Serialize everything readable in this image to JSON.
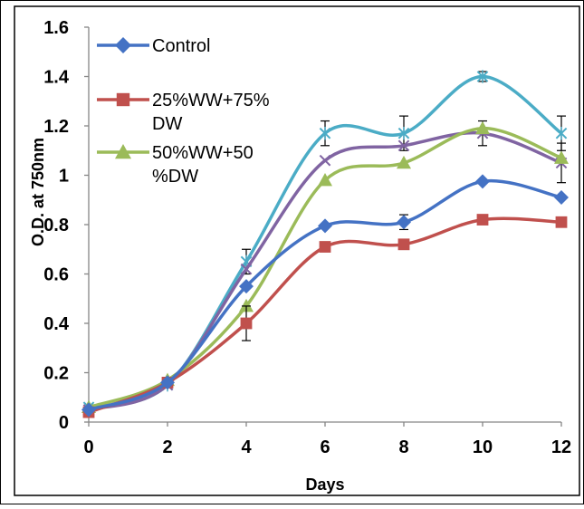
{
  "chart_data": {
    "type": "line",
    "title": "",
    "xlabel": "Days",
    "ylabel": "O.D. at 750nm",
    "x": [
      0,
      2,
      4,
      6,
      8,
      10,
      12
    ],
    "xlim": [
      0,
      12
    ],
    "ylim": [
      0,
      1.6
    ],
    "x_ticks": [
      "0",
      "2",
      "4",
      "6",
      "8",
      "10",
      "12"
    ],
    "y_ticks": [
      "0",
      "0.2",
      "0.4",
      "0.6",
      "0.8",
      "1",
      "1.2",
      "1.4",
      "1.6"
    ],
    "grid": false,
    "legend_position": "top-left",
    "series": [
      {
        "name": "Control",
        "color": "#4472C4",
        "marker": "diamond",
        "values": [
          0.05,
          0.16,
          0.55,
          0.795,
          0.81,
          0.975,
          0.91
        ],
        "error": [
          0.0,
          0.0,
          0.0,
          0.0,
          0.03,
          0.0,
          0.0
        ]
      },
      {
        "name": "25%WW+75%DW",
        "color": "#C0504D",
        "marker": "square",
        "values": [
          0.04,
          0.16,
          0.4,
          0.71,
          0.72,
          0.82,
          0.81
        ],
        "error": [
          0.0,
          0.02,
          0.07,
          0.0,
          0.0,
          0.0,
          0.0
        ]
      },
      {
        "name": "50%WW+50%DW",
        "color": "#9BBB59",
        "marker": "triangle",
        "values": [
          0.06,
          0.17,
          0.47,
          0.98,
          1.05,
          1.19,
          1.07
        ],
        "error": [
          0.0,
          0.0,
          0.0,
          0.0,
          0.0,
          0.0,
          0.0
        ]
      },
      {
        "name": "",
        "color": "#8064A2",
        "marker": "x",
        "values": [
          0.05,
          0.15,
          0.62,
          1.06,
          1.12,
          1.17,
          1.05
        ],
        "error": [
          0.0,
          0.0,
          0.0,
          0.0,
          0.0,
          0.05,
          0.08
        ]
      },
      {
        "name": "",
        "color": "#4BACC6",
        "marker": "star",
        "values": [
          0.06,
          0.15,
          0.65,
          1.17,
          1.17,
          1.4,
          1.17
        ],
        "error": [
          0.0,
          0.0,
          0.05,
          0.05,
          0.07,
          0.02,
          0.07
        ]
      }
    ],
    "legend_lines": [
      [
        "Control"
      ],
      [
        "25%WW+75%",
        "DW"
      ],
      [
        "50%WW+50",
        "%DW"
      ]
    ]
  }
}
